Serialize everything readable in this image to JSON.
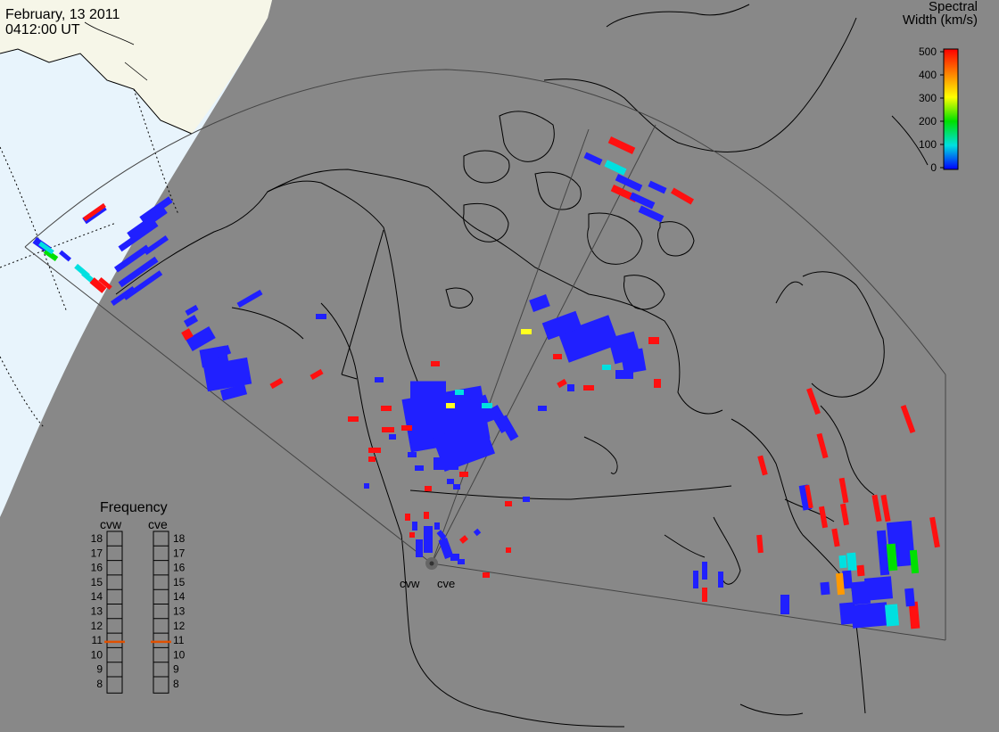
{
  "title": {
    "date": "February, 13 2011",
    "time": "0412:00 UT"
  },
  "colorbar": {
    "title_line1": "Spectral",
    "title_line2": "Width (km/s)",
    "ticks": [
      "500",
      "400",
      "300",
      "200",
      "100",
      "0"
    ],
    "colors": [
      "#ff0000",
      "#ff8000",
      "#ffff00",
      "#00e000",
      "#00e0e0",
      "#0000ff"
    ]
  },
  "radars": {
    "west": "cvw",
    "east": "cve"
  },
  "frequency": {
    "title": "Frequency",
    "labels": [
      "18",
      "17",
      "16",
      "15",
      "14",
      "13",
      "12",
      "11",
      "10",
      "9",
      "8"
    ],
    "cvw_value": 10.9,
    "cve_value": 10.9,
    "indicator_color": "#e05000"
  },
  "colors": {
    "ocean_day": "#e8f4fc",
    "land_day": "#f6f6e8",
    "night": "#888888",
    "scatter_low": "#2020ff",
    "scatter_high": "#ff1010"
  }
}
